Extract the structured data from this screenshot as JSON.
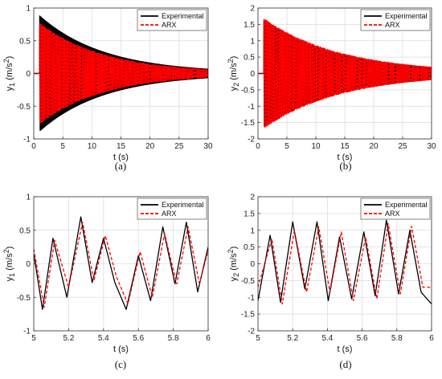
{
  "chart_data": [
    {
      "id": "a",
      "type": "line",
      "caption": "(a)",
      "xlabel": "t (s)",
      "ylabel_var": "y",
      "ylabel_sub": "1",
      "ylabel_unit": " (m/s",
      "ylabel_sup": "2",
      "ylabel_end": ")",
      "xlim": [
        0,
        30
      ],
      "ylim": [
        -1,
        1
      ],
      "xticks": [
        0,
        5,
        10,
        15,
        20,
        25,
        30
      ],
      "yticks": [
        -1,
        -0.5,
        0,
        0.5,
        1
      ],
      "ytick_labels": [
        "-1",
        "-0.5",
        "0",
        "0.5",
        "1"
      ],
      "grid": true,
      "legend_position": "top-right",
      "signal": {
        "start": 1,
        "freq": 7.3,
        "decay": 0.09,
        "onset_value": 0,
        "decay_ref": 1
      },
      "series": [
        {
          "name": "Experimental",
          "color": "#000000",
          "style": "solid",
          "width": 1.4,
          "amplitude": 0.88,
          "phase": 0
        },
        {
          "name": "ARX",
          "color": "#ff0000",
          "style": "dashed",
          "width": 1.4,
          "amplitude": 0.8,
          "phase": 0.3
        }
      ]
    },
    {
      "id": "b",
      "type": "line",
      "caption": "(b)",
      "xlabel": "t (s)",
      "ylabel_var": "y",
      "ylabel_sub": "2",
      "ylabel_unit": " (m/s",
      "ylabel_sup": "2",
      "ylabel_end": ")",
      "xlim": [
        0,
        30
      ],
      "ylim": [
        -2,
        2
      ],
      "xticks": [
        0,
        5,
        10,
        15,
        20,
        25,
        30
      ],
      "yticks": [
        -2,
        -1.5,
        -1,
        -0.5,
        0,
        0.5,
        1,
        1.5,
        2
      ],
      "ytick_labels": [
        "-2",
        "-1.5",
        "-1",
        "-0.5",
        "0",
        "0.5",
        "1",
        "1.5",
        "2"
      ],
      "grid": true,
      "legend_position": "top-right",
      "signal": {
        "start": 1,
        "freq": 7.3,
        "decay": 0.075,
        "onset_value": 0,
        "decay_ref": 1
      },
      "series": [
        {
          "name": "Experimental",
          "color": "#000000",
          "style": "solid",
          "width": 1.4,
          "amplitude": 1.6,
          "phase": 0
        },
        {
          "name": "ARX",
          "color": "#ff0000",
          "style": "dashed",
          "width": 1.4,
          "amplitude": 1.75,
          "phase": 0.3
        }
      ]
    },
    {
      "id": "c",
      "type": "line",
      "caption": "(c)",
      "xlabel": "t (s)",
      "ylabel_var": "y",
      "ylabel_sub": "1",
      "ylabel_unit": " (m/s",
      "ylabel_sup": "2",
      "ylabel_end": ")",
      "xlim": [
        5,
        6
      ],
      "ylim": [
        -1,
        1
      ],
      "xticks": [
        5,
        5.2,
        5.4,
        5.6,
        5.8,
        6
      ],
      "xtick_labels": [
        "5",
        "5.2",
        "5.4",
        "5.6",
        "5.8",
        "6"
      ],
      "yticks": [
        -1,
        -0.5,
        0,
        0.5,
        1
      ],
      "ytick_labels": [
        "-1",
        "-0.5",
        "0",
        "0.5",
        "1"
      ],
      "grid": true,
      "legend_position": "top-right",
      "series": [
        {
          "name": "Experimental",
          "color": "#000000",
          "style": "solid",
          "width": 1.3,
          "x": [
            5,
            5.05,
            5.11,
            5.19,
            5.27,
            5.335,
            5.4,
            5.465,
            5.53,
            5.6,
            5.67,
            5.74,
            5.81,
            5.875,
            5.94,
            6
          ],
          "y": [
            0.15,
            -0.68,
            0.38,
            -0.5,
            0.7,
            -0.28,
            0.38,
            -0.28,
            -0.68,
            0.12,
            -0.55,
            0.55,
            -0.3,
            0.62,
            -0.42,
            0.25
          ]
        },
        {
          "name": "ARX",
          "color": "#ff0000",
          "style": "dashed",
          "width": 1.3,
          "x": [
            5,
            5.06,
            5.12,
            5.2,
            5.28,
            5.345,
            5.41,
            5.475,
            5.54,
            5.61,
            5.68,
            5.75,
            5.82,
            5.885,
            5.95,
            6
          ],
          "y": [
            0.22,
            -0.65,
            0.35,
            -0.35,
            0.62,
            -0.25,
            0.42,
            -0.2,
            -0.6,
            0.18,
            -0.5,
            0.45,
            -0.3,
            0.55,
            -0.3,
            0.2
          ]
        }
      ]
    },
    {
      "id": "d",
      "type": "line",
      "caption": "(d)",
      "xlabel": "t (s)",
      "ylabel_var": "y",
      "ylabel_sub": "2",
      "ylabel_unit": " (m/s",
      "ylabel_sup": "2",
      "ylabel_end": ")",
      "xlim": [
        5,
        6
      ],
      "ylim": [
        -2,
        2
      ],
      "xticks": [
        5,
        5.2,
        5.4,
        5.6,
        5.8,
        6
      ],
      "xtick_labels": [
        "5",
        "5.2",
        "5.4",
        "5.6",
        "5.8",
        "6"
      ],
      "yticks": [
        -2,
        -1.5,
        -1,
        -0.5,
        0,
        0.5,
        1,
        1.5,
        2
      ],
      "ytick_labels": [
        "-2",
        "-1.5",
        "-1",
        "-0.5",
        "0",
        "0.5",
        "1",
        "1.5",
        "2"
      ],
      "grid": true,
      "legend_position": "top-right",
      "series": [
        {
          "name": "Experimental",
          "color": "#000000",
          "style": "solid",
          "width": 1.3,
          "x": [
            5,
            5.07,
            5.13,
            5.2,
            5.27,
            5.34,
            5.405,
            5.47,
            5.54,
            5.61,
            5.675,
            5.74,
            5.81,
            5.875,
            5.94,
            6
          ],
          "y": [
            -1.1,
            0.85,
            -1.15,
            1.25,
            -0.75,
            1.25,
            -1.1,
            0.8,
            -1.05,
            0.95,
            -0.95,
            1.3,
            -0.9,
            1.0,
            -0.85,
            -1.2
          ]
        },
        {
          "name": "ARX",
          "color": "#ff0000",
          "style": "dashed",
          "width": 1.3,
          "x": [
            5,
            5.08,
            5.14,
            5.21,
            5.28,
            5.35,
            5.415,
            5.48,
            5.55,
            5.62,
            5.685,
            5.75,
            5.82,
            5.885,
            5.95,
            6
          ],
          "y": [
            -0.7,
            0.75,
            -1.2,
            1.0,
            -0.85,
            1.1,
            -0.85,
            0.95,
            -1.1,
            0.8,
            -1.05,
            1.2,
            -0.9,
            1.12,
            -0.7,
            -0.7
          ]
        }
      ]
    }
  ]
}
